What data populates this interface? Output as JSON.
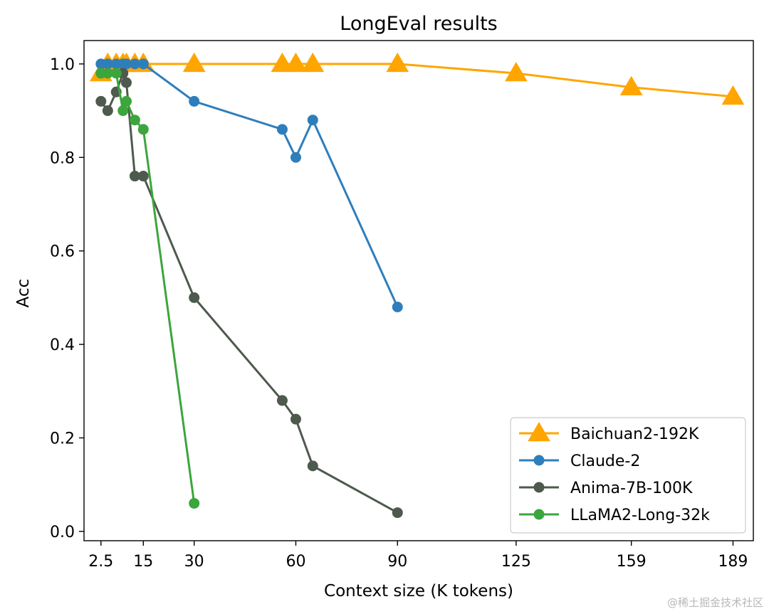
{
  "chart_data": {
    "type": "line",
    "title": "LongEval results",
    "xlabel": "Context size (K tokens)",
    "ylabel": "Acc",
    "xlim": [
      -2.5,
      195
    ],
    "ylim": [
      -0.02,
      1.05
    ],
    "x_ticks": [
      {
        "value": 2.5,
        "label": "2.5"
      },
      {
        "value": 15,
        "label": "15"
      },
      {
        "value": 30,
        "label": "30"
      },
      {
        "value": 60,
        "label": "60"
      },
      {
        "value": 90,
        "label": "90"
      },
      {
        "value": 125,
        "label": "125"
      },
      {
        "value": 159,
        "label": "159"
      },
      {
        "value": 189,
        "label": "189"
      }
    ],
    "y_ticks": [
      {
        "value": 0.0,
        "label": "0.0"
      },
      {
        "value": 0.2,
        "label": "0.2"
      },
      {
        "value": 0.4,
        "label": "0.4"
      },
      {
        "value": 0.6,
        "label": "0.6"
      },
      {
        "value": 0.8,
        "label": "0.8"
      },
      {
        "value": 1.0,
        "label": "1.0"
      }
    ],
    "legend_position": "bottom-right",
    "series": [
      {
        "name": "Baichuan2-192K",
        "color": "#ffa500",
        "marker": "triangle",
        "points": [
          {
            "x": 2.5,
            "y": 0.98
          },
          {
            "x": 4.5,
            "y": 1.0
          },
          {
            "x": 7,
            "y": 1.0
          },
          {
            "x": 9,
            "y": 1.0
          },
          {
            "x": 10,
            "y": 1.0
          },
          {
            "x": 12.5,
            "y": 1.0
          },
          {
            "x": 15,
            "y": 1.0
          },
          {
            "x": 30,
            "y": 1.0
          },
          {
            "x": 56,
            "y": 1.0
          },
          {
            "x": 60,
            "y": 1.0
          },
          {
            "x": 65,
            "y": 1.0
          },
          {
            "x": 90,
            "y": 1.0
          },
          {
            "x": 125,
            "y": 0.98
          },
          {
            "x": 159,
            "y": 0.95
          },
          {
            "x": 189,
            "y": 0.93
          }
        ]
      },
      {
        "name": "Claude-2",
        "color": "#2e7ebc",
        "marker": "circle",
        "points": [
          {
            "x": 2.5,
            "y": 1.0
          },
          {
            "x": 4.5,
            "y": 1.0
          },
          {
            "x": 7,
            "y": 1.0
          },
          {
            "x": 9,
            "y": 1.0
          },
          {
            "x": 10,
            "y": 1.0
          },
          {
            "x": 12.5,
            "y": 1.0
          },
          {
            "x": 15,
            "y": 1.0
          },
          {
            "x": 30,
            "y": 0.92
          },
          {
            "x": 56,
            "y": 0.86
          },
          {
            "x": 60,
            "y": 0.8
          },
          {
            "x": 65,
            "y": 0.88
          },
          {
            "x": 90,
            "y": 0.48
          }
        ]
      },
      {
        "name": "Anima-7B-100K",
        "color": "#4d5a4d",
        "marker": "circle",
        "points": [
          {
            "x": 2.5,
            "y": 0.92
          },
          {
            "x": 4.5,
            "y": 0.9
          },
          {
            "x": 7,
            "y": 0.94
          },
          {
            "x": 9,
            "y": 0.98
          },
          {
            "x": 10,
            "y": 0.96
          },
          {
            "x": 12.5,
            "y": 0.76
          },
          {
            "x": 15,
            "y": 0.76
          },
          {
            "x": 30,
            "y": 0.5
          },
          {
            "x": 56,
            "y": 0.28
          },
          {
            "x": 60,
            "y": 0.24
          },
          {
            "x": 65,
            "y": 0.14
          },
          {
            "x": 90,
            "y": 0.04
          }
        ]
      },
      {
        "name": "LLaMA2-Long-32k",
        "color": "#3ca53c",
        "marker": "circle",
        "points": [
          {
            "x": 2.5,
            "y": 0.98
          },
          {
            "x": 4.5,
            "y": 0.98
          },
          {
            "x": 7,
            "y": 0.98
          },
          {
            "x": 9,
            "y": 0.9
          },
          {
            "x": 10,
            "y": 0.92
          },
          {
            "x": 12.5,
            "y": 0.88
          },
          {
            "x": 15,
            "y": 0.86
          },
          {
            "x": 30,
            "y": 0.06
          }
        ]
      }
    ]
  },
  "watermark": "@稀土掘金技术社区"
}
